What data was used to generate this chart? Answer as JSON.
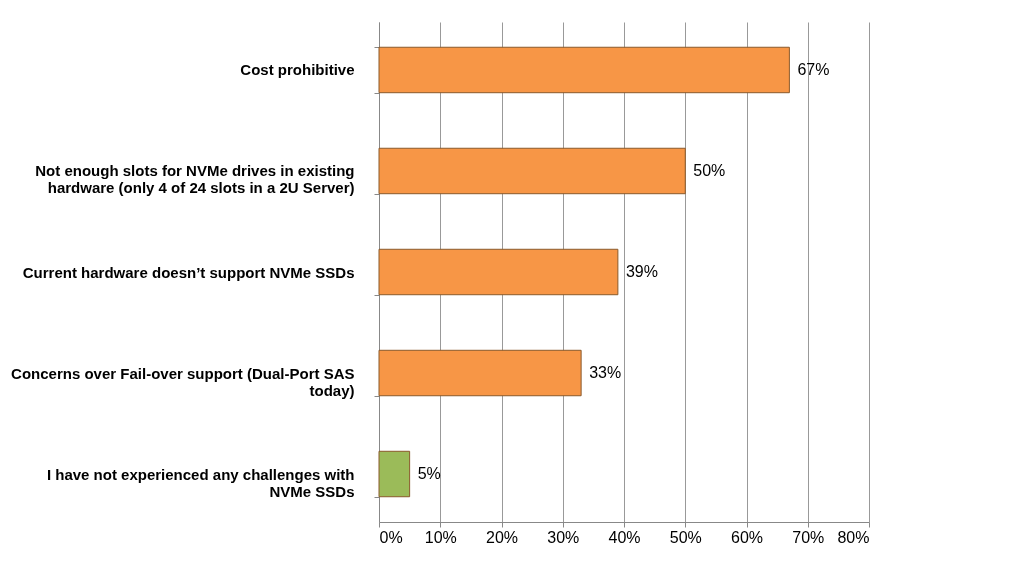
{
  "chart_data": {
    "type": "bar",
    "orientation": "horizontal",
    "categories": [
      "Cost prohibitive",
      "Not enough slots for NVMe drives in existing hardware (only 4 of 24 slots in a 2U Server)",
      "Current hardware doesn’t support NVMe SSDs",
      "Concerns over Fail-over support (Dual-Port SAS today)",
      "I have not experienced any challenges with NVMe SSDs"
    ],
    "values": [
      67,
      50,
      39,
      33,
      5
    ],
    "colors": [
      "#f79646",
      "#f79646",
      "#f79646",
      "#f79646",
      "#9bbb59"
    ],
    "value_labels": [
      "67%",
      "50%",
      "39%",
      "33%",
      "5%"
    ],
    "xlim": [
      0,
      80
    ],
    "xticks": [
      {
        "value": 0,
        "label": "0%"
      },
      {
        "value": 10,
        "label": "10%"
      },
      {
        "value": 20,
        "label": "20%"
      },
      {
        "value": 30,
        "label": "30%"
      },
      {
        "value": 40,
        "label": "40%"
      },
      {
        "value": 50,
        "label": "50%"
      },
      {
        "value": 60,
        "label": "60%"
      },
      {
        "value": 70,
        "label": "70%"
      },
      {
        "value": 80,
        "label": "80%"
      }
    ],
    "grid": "x"
  }
}
